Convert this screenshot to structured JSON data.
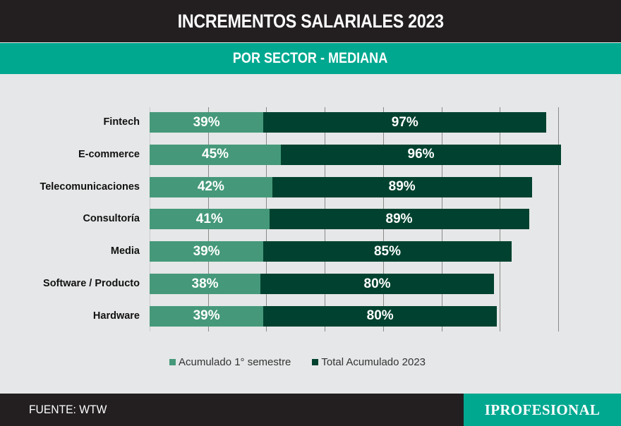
{
  "header": {
    "title": "INCREMENTOS SALARIALES 2023",
    "subtitle": "POR SECTOR - MEDIANA"
  },
  "colors": {
    "title_bar": "#231f20",
    "accent_teal": "#00a890",
    "first_semester": "#45997a",
    "total_2023": "#00422f",
    "background": "#e6e7e8"
  },
  "legend": {
    "items": [
      {
        "label": "Acumulado 1° semestre",
        "color": "#45997a"
      },
      {
        "label": "Total Acumulado 2023",
        "color": "#00422f"
      }
    ]
  },
  "footer": {
    "source": "FUENTE: WTW",
    "logo": "IPROFESIONAL"
  },
  "rows": [
    {
      "label": "Fintech",
      "first": "39%",
      "total": "97%"
    },
    {
      "label": "E-commerce",
      "first": "45%",
      "total": "96%"
    },
    {
      "label": "Telecomunicaciones",
      "first": "42%",
      "total": "89%"
    },
    {
      "label": "Consultoría",
      "first": "41%",
      "total": "89%"
    },
    {
      "label": "Media",
      "first": "39%",
      "total": "85%"
    },
    {
      "label": "Software / Producto",
      "first": "38%",
      "total": "80%"
    },
    {
      "label": "Hardware",
      "first": "39%",
      "total": "80%"
    }
  ],
  "chart_data": {
    "type": "bar",
    "orientation": "horizontal",
    "stacked": true,
    "title": "INCREMENTOS SALARIALES 2023",
    "subtitle": "POR SECTOR - MEDIANA",
    "categories": [
      "Fintech",
      "E-commerce",
      "Telecomunicaciones",
      "Consultoría",
      "Media",
      "Software / Producto",
      "Hardware"
    ],
    "series": [
      {
        "name": "Acumulado 1° semestre",
        "color": "#45997a",
        "values": [
          39,
          45,
          42,
          41,
          39,
          38,
          39
        ]
      },
      {
        "name": "Total Acumulado 2023",
        "color": "#00422f",
        "values": [
          97,
          96,
          89,
          89,
          85,
          80,
          80
        ]
      }
    ],
    "xlabel": "",
    "ylabel": "",
    "xlim": [
      0,
      140
    ],
    "grid": true,
    "grid_step": 20,
    "tick_labels_shown": false,
    "legend_position": "bottom",
    "data_labels": true,
    "source": "FUENTE: WTW"
  }
}
